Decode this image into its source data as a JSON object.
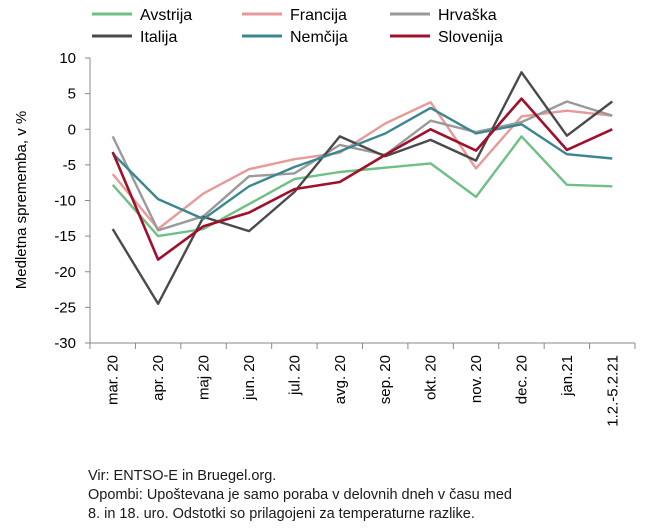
{
  "chart_data": {
    "type": "line",
    "ylabel": "Medletna sprememba, v %",
    "ylim": [
      -30,
      10
    ],
    "yticks": [
      10,
      5,
      0,
      -5,
      -10,
      -15,
      -20,
      -25,
      -30
    ],
    "categories": [
      "mar. 20",
      "apr. 20",
      "maj 20",
      "jun. 20",
      "jul. 20",
      "avg. 20",
      "sep. 20",
      "okt. 20",
      "nov. 20",
      "dec. 20",
      "jan.21",
      "1.2.-5.2.21"
    ],
    "legend_position": "top",
    "grid": false,
    "series": [
      {
        "name": "Avstrija",
        "color": "#6fbf86",
        "values": [
          -7.8,
          -15.0,
          -14.0,
          -10.5,
          -7.0,
          -6.0,
          -5.4,
          -4.8,
          -9.5,
          -1.0,
          -7.8,
          -8.0
        ]
      },
      {
        "name": "Francija",
        "color": "#e79a9a",
        "values": [
          -6.3,
          -14.0,
          -9.0,
          -5.6,
          -4.2,
          -3.3,
          0.8,
          3.8,
          -5.5,
          1.8,
          2.6,
          1.9
        ]
      },
      {
        "name": "Hrvaška",
        "color": "#9a9a9a",
        "values": [
          -1.0,
          -14.2,
          -12.2,
          -6.6,
          -6.2,
          -2.2,
          -3.6,
          1.2,
          -0.4,
          1.0,
          3.9,
          1.9
        ]
      },
      {
        "name": "Italija",
        "color": "#4a4a4a",
        "values": [
          -14.0,
          -24.5,
          -12.3,
          -14.3,
          -8.8,
          -1.0,
          -3.8,
          -1.5,
          -4.4,
          8.0,
          -0.9,
          3.9
        ]
      },
      {
        "name": "Nemčija",
        "color": "#3b8790",
        "values": [
          -3.4,
          -9.8,
          -12.6,
          -8.0,
          -5.3,
          -3.1,
          -0.6,
          3.0,
          -0.6,
          0.7,
          -3.5,
          -4.1
        ]
      },
      {
        "name": "Slovenija",
        "color": "#a0102a",
        "values": [
          -3.2,
          -18.3,
          -13.6,
          -11.7,
          -8.4,
          -7.4,
          -3.6,
          0.0,
          -3.0,
          4.3,
          -2.9,
          0.0
        ]
      }
    ]
  },
  "notes": {
    "source": "Vir: ENTSO-E in Bruegel.org.",
    "remark_line1": "Opombi: Upoštevana je samo poraba v delovnih dneh v času med",
    "remark_line2": "8. in 18. uro. Odstotki so prilagojeni za temperaturne razlike."
  }
}
